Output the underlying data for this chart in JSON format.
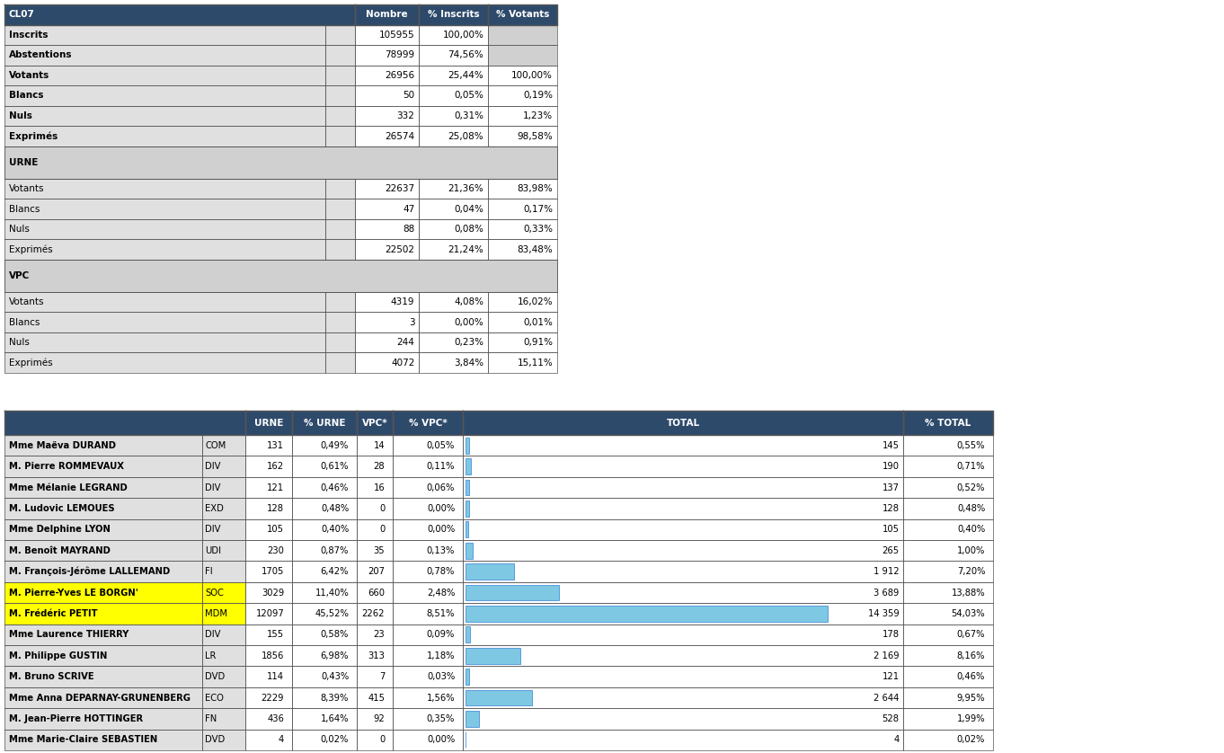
{
  "header_bg": "#2E4A6B",
  "header_text": "#FFFFFF",
  "row_bg_light": "#E0E0E0",
  "row_bg_white": "#FFFFFF",
  "row_bg_yellow": "#FFFF00",
  "section_bg": "#D0D0D0",
  "bar_color_light": "#7EC8E3",
  "bar_color_dark": "#4A90D9",
  "top_rows": [
    {
      "label": "Inscrits",
      "bold": true,
      "nombre": "105955",
      "pct_ins": "100,00%",
      "pct_vot": "",
      "section": false,
      "grey_right": true
    },
    {
      "label": "Abstentions",
      "bold": true,
      "nombre": "78999",
      "pct_ins": "74,56%",
      "pct_vot": "",
      "section": false,
      "grey_right": true
    },
    {
      "label": "Votants",
      "bold": true,
      "nombre": "26956",
      "pct_ins": "25,44%",
      "pct_vot": "100,00%",
      "section": false,
      "grey_right": false
    },
    {
      "label": "Blancs",
      "bold": true,
      "nombre": "50",
      "pct_ins": "0,05%",
      "pct_vot": "0,19%",
      "section": false,
      "grey_right": false
    },
    {
      "label": "Nuls",
      "bold": true,
      "nombre": "332",
      "pct_ins": "0,31%",
      "pct_vot": "1,23%",
      "section": false,
      "grey_right": false
    },
    {
      "label": "Exprimés",
      "bold": true,
      "nombre": "26574",
      "pct_ins": "25,08%",
      "pct_vot": "98,58%",
      "section": false,
      "grey_right": false
    },
    {
      "label": "URNE",
      "bold": true,
      "nombre": "",
      "pct_ins": "",
      "pct_vot": "",
      "section": true,
      "grey_right": false
    },
    {
      "label": "Votants",
      "bold": false,
      "nombre": "22637",
      "pct_ins": "21,36%",
      "pct_vot": "83,98%",
      "section": false,
      "grey_right": false
    },
    {
      "label": "Blancs",
      "bold": false,
      "nombre": "47",
      "pct_ins": "0,04%",
      "pct_vot": "0,17%",
      "section": false,
      "grey_right": false
    },
    {
      "label": "Nuls",
      "bold": false,
      "nombre": "88",
      "pct_ins": "0,08%",
      "pct_vot": "0,33%",
      "section": false,
      "grey_right": false
    },
    {
      "label": "Exprimés",
      "bold": false,
      "nombre": "22502",
      "pct_ins": "21,24%",
      "pct_vot": "83,48%",
      "section": false,
      "grey_right": false
    },
    {
      "label": "VPC",
      "bold": true,
      "nombre": "",
      "pct_ins": "",
      "pct_vot": "",
      "section": true,
      "grey_right": false
    },
    {
      "label": "Votants",
      "bold": false,
      "nombre": "4319",
      "pct_ins": "4,08%",
      "pct_vot": "16,02%",
      "section": false,
      "grey_right": false
    },
    {
      "label": "Blancs",
      "bold": false,
      "nombre": "3",
      "pct_ins": "0,00%",
      "pct_vot": "0,01%",
      "section": false,
      "grey_right": false
    },
    {
      "label": "Nuls",
      "bold": false,
      "nombre": "244",
      "pct_ins": "0,23%",
      "pct_vot": "0,91%",
      "section": false,
      "grey_right": false
    },
    {
      "label": "Exprimés",
      "bold": false,
      "nombre": "4072",
      "pct_ins": "3,84%",
      "pct_vot": "15,11%",
      "section": false,
      "grey_right": false
    }
  ],
  "bot_rows": [
    {
      "name": "Mme Maëva DURAND",
      "party": "COM",
      "urne": "131",
      "pct_urne": "0,49%",
      "vpc": "14",
      "pct_vpc": "0,05%",
      "total": "145",
      "pct_total": "0,55%",
      "total_val": 145,
      "highlight": false
    },
    {
      "name": "M. Pierre ROMMEVAUX",
      "party": "DIV",
      "urne": "162",
      "pct_urne": "0,61%",
      "vpc": "28",
      "pct_vpc": "0,11%",
      "total": "190",
      "pct_total": "0,71%",
      "total_val": 190,
      "highlight": false
    },
    {
      "name": "Mme Mélanie LEGRAND",
      "party": "DIV",
      "urne": "121",
      "pct_urne": "0,46%",
      "vpc": "16",
      "pct_vpc": "0,06%",
      "total": "137",
      "pct_total": "0,52%",
      "total_val": 137,
      "highlight": false
    },
    {
      "name": "M. Ludovic LEMOUES",
      "party": "EXD",
      "urne": "128",
      "pct_urne": "0,48%",
      "vpc": "0",
      "pct_vpc": "0,00%",
      "total": "128",
      "pct_total": "0,48%",
      "total_val": 128,
      "highlight": false
    },
    {
      "name": "Mme Delphine LYON",
      "party": "DIV",
      "urne": "105",
      "pct_urne": "0,40%",
      "vpc": "0",
      "pct_vpc": "0,00%",
      "total": "105",
      "pct_total": "0,40%",
      "total_val": 105,
      "highlight": false
    },
    {
      "name": "M. Benoît MAYRAND",
      "party": "UDI",
      "urne": "230",
      "pct_urne": "0,87%",
      "vpc": "35",
      "pct_vpc": "0,13%",
      "total": "265",
      "pct_total": "1,00%",
      "total_val": 265,
      "highlight": false
    },
    {
      "name": "M. François-Jérôme LALLEMAND",
      "party": "FI",
      "urne": "1705",
      "pct_urne": "6,42%",
      "vpc": "207",
      "pct_vpc": "0,78%",
      "total": "1 912",
      "pct_total": "7,20%",
      "total_val": 1912,
      "highlight": false
    },
    {
      "name": "M. Pierre-Yves LE BORGN'",
      "party": "SOC",
      "urne": "3029",
      "pct_urne": "11,40%",
      "vpc": "660",
      "pct_vpc": "2,48%",
      "total": "3 689",
      "pct_total": "13,88%",
      "total_val": 3689,
      "highlight": true
    },
    {
      "name": "M. Frédéric PETIT",
      "party": "MDM",
      "urne": "12097",
      "pct_urne": "45,52%",
      "vpc": "2262",
      "pct_vpc": "8,51%",
      "total": "14 359",
      "pct_total": "54,03%",
      "total_val": 14359,
      "highlight": true
    },
    {
      "name": "Mme Laurence THIERRY",
      "party": "DIV",
      "urne": "155",
      "pct_urne": "0,58%",
      "vpc": "23",
      "pct_vpc": "0,09%",
      "total": "178",
      "pct_total": "0,67%",
      "total_val": 178,
      "highlight": false
    },
    {
      "name": "M. Philippe GUSTIN",
      "party": "LR",
      "urne": "1856",
      "pct_urne": "6,98%",
      "vpc": "313",
      "pct_vpc": "1,18%",
      "total": "2 169",
      "pct_total": "8,16%",
      "total_val": 2169,
      "highlight": false
    },
    {
      "name": "M. Bruno SCRIVE",
      "party": "DVD",
      "urne": "114",
      "pct_urne": "0,43%",
      "vpc": "7",
      "pct_vpc": "0,03%",
      "total": "121",
      "pct_total": "0,46%",
      "total_val": 121,
      "highlight": false
    },
    {
      "name": "Mme Anna DEPARNAY-GRUNENBERG",
      "party": "ECO",
      "urne": "2229",
      "pct_urne": "8,39%",
      "vpc": "415",
      "pct_vpc": "1,56%",
      "total": "2 644",
      "pct_total": "9,95%",
      "total_val": 2644,
      "highlight": false
    },
    {
      "name": "M. Jean-Pierre HOTTINGER",
      "party": "FN",
      "urne": "436",
      "pct_urne": "1,64%",
      "vpc": "92",
      "pct_vpc": "0,35%",
      "total": "528",
      "pct_total": "1,99%",
      "total_val": 528,
      "highlight": false
    },
    {
      "name": "Mme Marie-Claire SEBASTIEN",
      "party": "DVD",
      "urne": "4",
      "pct_urne": "0,02%",
      "vpc": "0",
      "pct_vpc": "0,00%",
      "total": "4",
      "pct_total": "0,02%",
      "total_val": 4,
      "highlight": false
    }
  ],
  "max_total": 14359
}
